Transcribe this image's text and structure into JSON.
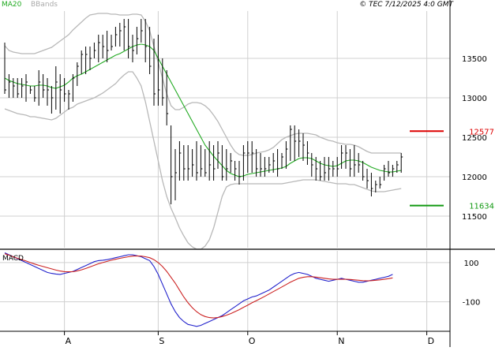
{
  "header": {
    "ma_label": "MA20",
    "bbands_label": "BBands",
    "copyright": "© TEC 7/12/2025 4:0 GMT"
  },
  "colors": {
    "background": "#ffffff",
    "grid": "#d0d0d0",
    "price_bars": "#000000",
    "ma20": "#22aa22",
    "bbands": "#b8b8b8",
    "macd_line": "#2222cc",
    "signal_line": "#cc2222",
    "resistance": "#dd0000",
    "support": "#119911",
    "axis": "#000000"
  },
  "chart_data": [
    {
      "type": "ohlc",
      "panel": "price",
      "ylim": [
        11100,
        14100
      ],
      "y_ticks": [
        11500,
        12000,
        12500,
        13000,
        13500
      ],
      "y_tick_labels": [
        "11500",
        "12000",
        "12500",
        "13000",
        "13500"
      ],
      "x_labels": [
        "A",
        "S",
        "O",
        "N",
        "D"
      ],
      "x_label_index": [
        14,
        36,
        57,
        78,
        99
      ],
      "grid": true,
      "series": [
        {
          "name": "MA20",
          "key": "ma20"
        },
        {
          "name": "BBands",
          "key": "bbands"
        }
      ],
      "bars": {
        "high": [
          13700,
          13300,
          13250,
          13250,
          13250,
          13300,
          13150,
          13150,
          13350,
          13300,
          13250,
          13150,
          13400,
          13300,
          13250,
          13100,
          13300,
          13450,
          13600,
          13650,
          13650,
          13700,
          13800,
          13800,
          13850,
          13800,
          13900,
          13950,
          14000,
          14000,
          13800,
          13900,
          14000,
          14000,
          13900,
          13750,
          13800,
          13500,
          13350,
          12650,
          12350,
          12450,
          12400,
          12400,
          12350,
          12450,
          12400,
          12350,
          12450,
          12400,
          12450,
          12400,
          12350,
          12300,
          12200,
          12200,
          12400,
          12450,
          12450,
          12350,
          12300,
          12250,
          12250,
          12300,
          12350,
          12300,
          12450,
          12650,
          12650,
          12600,
          12550,
          12450,
          12300,
          12250,
          12200,
          12250,
          12250,
          12200,
          12250,
          12400,
          12400,
          12350,
          12400,
          12300,
          12200,
          12100,
          12050,
          11950,
          12000,
          12150,
          12200,
          12150,
          12200,
          12300
        ],
        "low": [
          13050,
          13000,
          13000,
          13000,
          13000,
          12950,
          13050,
          12950,
          12900,
          13000,
          12900,
          12800,
          12850,
          12800,
          12950,
          12850,
          12950,
          13150,
          13300,
          13300,
          13350,
          13500,
          13450,
          13500,
          13450,
          13600,
          13650,
          13650,
          13600,
          13500,
          13450,
          13550,
          13700,
          13450,
          13300,
          12900,
          12900,
          12900,
          12650,
          11650,
          11700,
          11950,
          11950,
          11950,
          12000,
          11950,
          12000,
          12000,
          11950,
          11950,
          12100,
          11950,
          11950,
          12050,
          11950,
          11900,
          11950,
          12050,
          12050,
          12000,
          12000,
          12000,
          12050,
          12050,
          12000,
          12100,
          12100,
          12200,
          12200,
          12250,
          12200,
          12150,
          12000,
          11950,
          11950,
          11950,
          11950,
          12000,
          12000,
          12100,
          12100,
          12000,
          12000,
          12050,
          11950,
          11850,
          11750,
          11800,
          11850,
          11950,
          12000,
          12000,
          12050,
          12050
        ],
        "close": [
          13100,
          13200,
          13150,
          13050,
          13150,
          13200,
          13100,
          13000,
          13200,
          13100,
          13100,
          13000,
          13200,
          13100,
          13050,
          13050,
          13250,
          13400,
          13550,
          13550,
          13500,
          13600,
          13700,
          13650,
          13600,
          13650,
          13800,
          13850,
          13900,
          13650,
          13600,
          13750,
          13850,
          13650,
          13400,
          13050,
          13100,
          13000,
          12800,
          12000,
          12050,
          12300,
          12100,
          12100,
          12150,
          12050,
          12100,
          12050,
          12150,
          12100,
          12300,
          12000,
          12100,
          12200,
          12100,
          12000,
          12300,
          12300,
          12300,
          12100,
          12100,
          12100,
          12150,
          12200,
          12100,
          12250,
          12350,
          12600,
          12450,
          12450,
          12400,
          12300,
          12150,
          12100,
          12000,
          12050,
          12100,
          12100,
          12100,
          12300,
          12300,
          12100,
          12150,
          12150,
          12000,
          11950,
          11850,
          11900,
          11900,
          12100,
          12050,
          12100,
          12150,
          12250
        ]
      },
      "ma20": [
        13250,
        13220,
        13200,
        13180,
        13170,
        13160,
        13150,
        13150,
        13160,
        13160,
        13150,
        13130,
        13120,
        13140,
        13160,
        13200,
        13250,
        13280,
        13300,
        13330,
        13360,
        13390,
        13420,
        13450,
        13480,
        13510,
        13540,
        13560,
        13590,
        13620,
        13650,
        13670,
        13680,
        13670,
        13650,
        13600,
        13500,
        13400,
        13300,
        13200,
        13100,
        13000,
        12900,
        12800,
        12700,
        12600,
        12500,
        12400,
        12330,
        12260,
        12200,
        12140,
        12080,
        12040,
        12020,
        12000,
        12010,
        12030,
        12040,
        12050,
        12060,
        12070,
        12080,
        12090,
        12100,
        12110,
        12130,
        12170,
        12200,
        12230,
        12240,
        12240,
        12230,
        12200,
        12170,
        12150,
        12140,
        12130,
        12140,
        12170,
        12200,
        12210,
        12210,
        12200,
        12180,
        12150,
        12120,
        12100,
        12080,
        12070,
        12060,
        12060,
        12070,
        12080
      ],
      "bbands": {
        "upper": [
          13660,
          13600,
          13580,
          13570,
          13560,
          13560,
          13560,
          13560,
          13580,
          13600,
          13620,
          13640,
          13680,
          13720,
          13760,
          13800,
          13860,
          13910,
          13960,
          14010,
          14050,
          14060,
          14070,
          14070,
          14070,
          14060,
          14060,
          14050,
          14050,
          14050,
          14060,
          14060,
          14050,
          13970,
          13850,
          13650,
          13450,
          13250,
          13050,
          12900,
          12850,
          12850,
          12880,
          12920,
          12940,
          12940,
          12930,
          12900,
          12850,
          12780,
          12700,
          12600,
          12500,
          12400,
          12320,
          12280,
          12270,
          12270,
          12280,
          12300,
          12310,
          12320,
          12340,
          12370,
          12420,
          12470,
          12500,
          12520,
          12540,
          12550,
          12550,
          12550,
          12540,
          12530,
          12500,
          12480,
          12460,
          12450,
          12430,
          12420,
          12410,
          12410,
          12400,
          12380,
          12350,
          12320,
          12300,
          12300,
          12300,
          12300,
          12300,
          12300,
          12300,
          12300
        ],
        "lower": [
          12860,
          12840,
          12820,
          12800,
          12790,
          12780,
          12760,
          12760,
          12750,
          12740,
          12730,
          12720,
          12740,
          12780,
          12820,
          12860,
          12880,
          12920,
          12940,
          12960,
          12980,
          13000,
          13030,
          13060,
          13100,
          13140,
          13180,
          13240,
          13290,
          13330,
          13330,
          13250,
          13150,
          12950,
          12700,
          12450,
          12200,
          11950,
          11750,
          11600,
          11480,
          11350,
          11250,
          11160,
          11110,
          11080,
          11080,
          11120,
          11200,
          11350,
          11550,
          11750,
          11870,
          11900,
          11910,
          11910,
          11910,
          11910,
          11910,
          11910,
          11910,
          11910,
          11910,
          11910,
          11910,
          11910,
          11920,
          11930,
          11940,
          11950,
          11960,
          11960,
          11960,
          11960,
          11950,
          11940,
          11930,
          11920,
          11910,
          11910,
          11910,
          11900,
          11900,
          11880,
          11860,
          11840,
          11820,
          11810,
          11810,
          11810,
          11820,
          11830,
          11840,
          11850
        ]
      },
      "levels": [
        {
          "key": "resistance",
          "value": 12577,
          "label": "12577"
        },
        {
          "key": "support",
          "value": 11634,
          "label": "11634"
        }
      ]
    },
    {
      "type": "line",
      "panel": "macd",
      "title": "MACD",
      "ylim": [
        -250,
        160
      ],
      "y_ticks": [
        100,
        -100
      ],
      "y_tick_labels": [
        "100",
        "-100"
      ],
      "series": [
        {
          "key": "macd_line",
          "values": [
            150,
            140,
            130,
            120,
            110,
            100,
            90,
            80,
            70,
            60,
            50,
            45,
            42,
            40,
            45,
            50,
            55,
            65,
            75,
            85,
            95,
            105,
            110,
            112,
            115,
            120,
            125,
            130,
            135,
            140,
            140,
            135,
            130,
            120,
            110,
            80,
            40,
            -10,
            -60,
            -110,
            -150,
            -180,
            -200,
            -215,
            -220,
            -225,
            -220,
            -210,
            -200,
            -190,
            -180,
            -170,
            -155,
            -140,
            -125,
            -110,
            -95,
            -85,
            -75,
            -70,
            -60,
            -50,
            -40,
            -25,
            -10,
            5,
            20,
            35,
            45,
            50,
            45,
            40,
            30,
            20,
            15,
            10,
            5,
            10,
            15,
            20,
            15,
            10,
            5,
            0,
            0,
            5,
            10,
            15,
            20,
            25,
            30,
            40
          ]
        },
        {
          "key": "signal_line",
          "values": [
            145,
            138,
            130,
            122,
            115,
            108,
            100,
            93,
            86,
            80,
            74,
            68,
            62,
            57,
            54,
            53,
            54,
            58,
            63,
            70,
            78,
            86,
            94,
            100,
            106,
            112,
            117,
            122,
            126,
            130,
            133,
            134,
            133,
            130,
            125,
            115,
            100,
            80,
            55,
            25,
            -5,
            -40,
            -75,
            -105,
            -130,
            -150,
            -165,
            -175,
            -180,
            -182,
            -180,
            -175,
            -168,
            -160,
            -150,
            -140,
            -128,
            -117,
            -105,
            -94,
            -83,
            -72,
            -60,
            -48,
            -36,
            -24,
            -12,
            0,
            10,
            20,
            25,
            28,
            28,
            26,
            23,
            20,
            17,
            15,
            15,
            15,
            15,
            14,
            12,
            10,
            8,
            7,
            8,
            10,
            12,
            15,
            18,
            22
          ]
        }
      ]
    }
  ]
}
